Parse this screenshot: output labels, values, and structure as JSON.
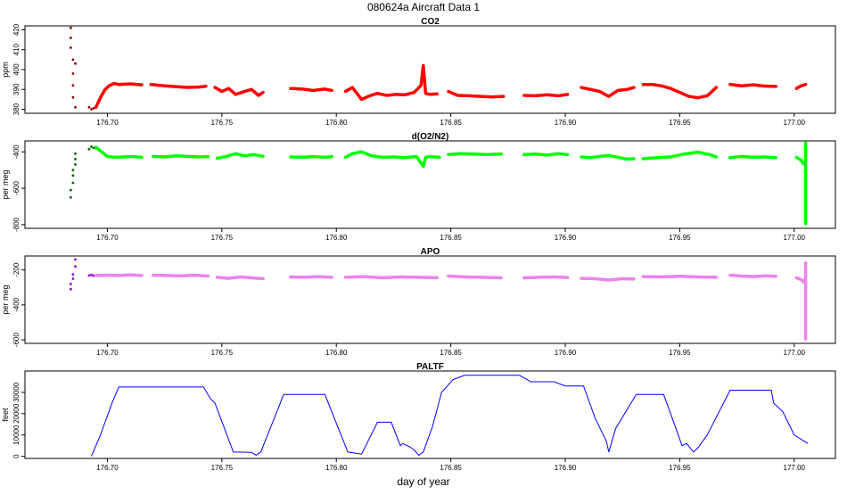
{
  "figure": {
    "title": "080624a   Aircraft Data 1",
    "xlabel": "day of year"
  },
  "colors": {
    "co2": "#ff0000",
    "co2_dark": "#8b0000",
    "o2n2": "#00ff00",
    "o2n2_dark": "#006400",
    "apo": "#ee82ee",
    "apo_dark": "#9400d3",
    "paltf": "#0000ff"
  },
  "chart_data": [
    {
      "type": "scatter",
      "title": "CO2",
      "ylabel": "ppm",
      "xlim": [
        176.664,
        177.018
      ],
      "ylim": [
        378,
        422
      ],
      "yticks": [
        380,
        390,
        400,
        410,
        420
      ],
      "xticks": [
        176.7,
        176.75,
        176.8,
        176.85,
        176.9,
        176.95,
        177.0
      ],
      "xticklabels": [
        "176.70",
        "176.75",
        "176.80",
        "176.85",
        "176.90",
        "176.95",
        "177.00"
      ],
      "series": [
        {
          "color": "co2_dark",
          "x": [
            176.684,
            176.684,
            176.684,
            176.685,
            176.685,
            176.685,
            176.685,
            176.686,
            176.686,
            176.692,
            176.693,
            176.694,
            176.695
          ],
          "y": [
            421,
            416,
            411,
            405,
            398,
            392,
            386,
            381,
            403,
            381,
            380,
            380.5,
            381
          ]
        },
        {
          "color": "co2",
          "x": [
            176.695,
            176.697,
            176.699,
            176.701,
            176.703,
            176.705,
            176.71,
            176.715
          ],
          "y": [
            381,
            386,
            390,
            392,
            393,
            392.5,
            392.8,
            392.3
          ]
        },
        {
          "color": "co2",
          "x": [
            176.719,
            176.725,
            176.73,
            176.735,
            176.74,
            176.743
          ],
          "y": [
            392.5,
            391.8,
            391.4,
            391.0,
            391.2,
            391.6
          ]
        },
        {
          "color": "co2",
          "x": [
            176.747,
            176.75,
            176.753,
            176.756,
            176.76,
            176.763,
            176.766,
            176.768
          ],
          "y": [
            391,
            389,
            390.5,
            387.5,
            389,
            390,
            387,
            388.5
          ]
        },
        {
          "color": "co2",
          "x": [
            176.78,
            176.785,
            176.79,
            176.795,
            176.798
          ],
          "y": [
            390.5,
            390.2,
            389.5,
            390.2,
            389.5
          ]
        },
        {
          "color": "co2",
          "x": [
            176.804,
            176.807,
            176.811,
            176.815,
            176.818,
            176.822,
            176.826,
            176.83,
            176.834,
            176.837,
            176.838,
            176.839,
            176.841,
            176.844
          ],
          "y": [
            389,
            391,
            385,
            387,
            388,
            387,
            387.5,
            387.3,
            388.5,
            392,
            402,
            388,
            387.5,
            387.8
          ]
        },
        {
          "color": "co2",
          "x": [
            176.849,
            176.853,
            176.858,
            176.863,
            176.868,
            176.873
          ],
          "y": [
            389,
            387,
            386.8,
            386.5,
            386.2,
            386.5
          ]
        },
        {
          "color": "co2",
          "x": [
            176.882,
            176.887,
            176.892,
            176.897,
            176.901
          ],
          "y": [
            387,
            386.8,
            387.3,
            386.8,
            387.5
          ]
        },
        {
          "color": "co2",
          "x": [
            176.907,
            176.911,
            176.915,
            176.919,
            176.923,
            176.927,
            176.93
          ],
          "y": [
            391,
            390,
            389,
            386.5,
            389.5,
            390,
            391
          ]
        },
        {
          "color": "co2",
          "x": [
            176.934,
            176.938,
            176.942,
            176.946,
            176.95,
            176.954,
            176.958,
            176.962,
            176.966
          ],
          "y": [
            392.5,
            392.5,
            391.8,
            390.5,
            388.5,
            386.5,
            385.8,
            386.8,
            391
          ]
        },
        {
          "color": "co2",
          "x": [
            176.972,
            176.977,
            176.982,
            176.987,
            176.992
          ],
          "y": [
            392.5,
            391.8,
            392.3,
            391.7,
            391.5
          ]
        },
        {
          "color": "co2",
          "x": [
            177.001,
            177.003,
            177.005
          ],
          "y": [
            390.5,
            391.8,
            392.5
          ]
        }
      ]
    },
    {
      "type": "scatter",
      "title": "d(O2/N2)",
      "ylabel": "per meg",
      "xlim": [
        176.664,
        177.018
      ],
      "ylim": [
        -820,
        -340
      ],
      "yticks": [
        -400,
        -600,
        -800
      ],
      "xticks": [
        176.7,
        176.75,
        176.8,
        176.85,
        176.9,
        176.95,
        177.0
      ],
      "xticklabels": [
        "176.70",
        "176.75",
        "176.80",
        "176.85",
        "176.90",
        "176.95",
        "177.00"
      ],
      "series": [
        {
          "color": "o2n2_dark",
          "x": [
            176.684,
            176.684,
            176.685,
            176.685,
            176.685,
            176.686,
            176.686,
            176.686,
            176.692,
            176.693,
            176.694,
            176.695
          ],
          "y": [
            -650,
            -610,
            -570,
            -530,
            -500,
            -470,
            -440,
            -410,
            -385,
            -372,
            -378,
            -380
          ]
        },
        {
          "color": "o2n2",
          "x": [
            176.695,
            176.698,
            176.7,
            176.703,
            176.707,
            176.711,
            176.715
          ],
          "y": [
            -375,
            -405,
            -425,
            -430,
            -428,
            -426,
            -430
          ]
        },
        {
          "color": "o2n2",
          "x": [
            176.72,
            176.725,
            176.73,
            176.735,
            176.74,
            176.744
          ],
          "y": [
            -425,
            -428,
            -422,
            -425,
            -428,
            -426
          ]
        },
        {
          "color": "o2n2",
          "x": [
            176.748,
            176.752,
            176.756,
            176.76,
            176.764,
            176.768
          ],
          "y": [
            -435,
            -425,
            -410,
            -422,
            -415,
            -425
          ]
        },
        {
          "color": "o2n2",
          "x": [
            176.78,
            176.785,
            176.79,
            176.795,
            176.798
          ],
          "y": [
            -428,
            -430,
            -426,
            -430,
            -426
          ]
        },
        {
          "color": "o2n2",
          "x": [
            176.804,
            176.807,
            176.811,
            176.815,
            176.82,
            176.825,
            176.83,
            176.835,
            176.838,
            176.839,
            176.841,
            176.845
          ],
          "y": [
            -430,
            -410,
            -400,
            -420,
            -430,
            -428,
            -432,
            -425,
            -480,
            -430,
            -426,
            -430
          ]
        },
        {
          "color": "o2n2",
          "x": [
            176.849,
            176.854,
            176.86,
            176.866,
            176.872
          ],
          "y": [
            -415,
            -410,
            -412,
            -415,
            -412
          ]
        },
        {
          "color": "o2n2",
          "x": [
            176.882,
            176.887,
            176.892,
            176.897,
            176.901
          ],
          "y": [
            -415,
            -412,
            -418,
            -410,
            -415
          ]
        },
        {
          "color": "o2n2",
          "x": [
            176.907,
            176.911,
            176.915,
            176.919,
            176.923,
            176.927,
            176.93
          ],
          "y": [
            -428,
            -432,
            -425,
            -420,
            -430,
            -440,
            -438
          ]
        },
        {
          "color": "o2n2",
          "x": [
            176.934,
            176.94,
            176.946,
            176.952,
            176.958,
            176.963,
            176.966
          ],
          "y": [
            -438,
            -432,
            -428,
            -412,
            -402,
            -415,
            -428
          ]
        },
        {
          "color": "o2n2",
          "x": [
            176.972,
            176.977,
            176.982,
            176.987,
            176.992
          ],
          "y": [
            -432,
            -425,
            -430,
            -428,
            -432
          ]
        },
        {
          "color": "o2n2",
          "x": [
            177.001,
            177.003,
            177.004,
            177.005,
            177.005,
            177.005
          ],
          "y": [
            -430,
            -445,
            -465,
            -470,
            -352,
            -795
          ]
        }
      ]
    },
    {
      "type": "scatter",
      "title": "APO",
      "ylabel": "per meg",
      "xlim": [
        176.664,
        177.018
      ],
      "ylim": [
        -620,
        -120
      ],
      "yticks": [
        -200,
        -400,
        -600
      ],
      "xticks": [
        176.7,
        176.75,
        176.8,
        176.85,
        176.9,
        176.95,
        177.0
      ],
      "xticklabels": [
        "176.70",
        "176.75",
        "176.80",
        "176.85",
        "176.90",
        "176.95",
        "177.00"
      ],
      "series": [
        {
          "color": "apo_dark",
          "x": [
            176.684,
            176.684,
            176.685,
            176.685,
            176.686,
            176.686,
            176.692,
            176.693,
            176.694
          ],
          "y": [
            -310,
            -280,
            -250,
            -225,
            -180,
            -140,
            -232,
            -228,
            -232
          ]
        },
        {
          "color": "apo",
          "x": [
            176.695,
            176.7,
            176.705,
            176.71,
            176.715
          ],
          "y": [
            -232,
            -230,
            -232,
            -228,
            -232
          ]
        },
        {
          "color": "apo",
          "x": [
            176.72,
            176.726,
            176.732,
            176.738,
            176.744
          ],
          "y": [
            -230,
            -232,
            -234,
            -230,
            -235
          ]
        },
        {
          "color": "apo",
          "x": [
            176.748,
            176.753,
            176.758,
            176.763,
            176.768
          ],
          "y": [
            -242,
            -248,
            -240,
            -245,
            -250
          ]
        },
        {
          "color": "apo",
          "x": [
            176.78,
            176.786,
            176.792,
            176.798
          ],
          "y": [
            -240,
            -242,
            -238,
            -242
          ]
        },
        {
          "color": "apo",
          "x": [
            176.804,
            176.812,
            176.82,
            176.828,
            176.836,
            176.844
          ],
          "y": [
            -242,
            -238,
            -245,
            -240,
            -242,
            -244
          ]
        },
        {
          "color": "apo",
          "x": [
            176.849,
            176.856,
            176.864,
            176.872
          ],
          "y": [
            -235,
            -240,
            -242,
            -245
          ]
        },
        {
          "color": "apo",
          "x": [
            176.882,
            176.888,
            176.895,
            176.901
          ],
          "y": [
            -245,
            -242,
            -240,
            -243
          ]
        },
        {
          "color": "apo",
          "x": [
            176.907,
            176.913,
            176.919,
            176.925,
            176.93
          ],
          "y": [
            -248,
            -250,
            -258,
            -250,
            -252
          ]
        },
        {
          "color": "apo",
          "x": [
            176.934,
            176.942,
            176.95,
            176.958,
            176.966
          ],
          "y": [
            -238,
            -240,
            -236,
            -240,
            -242
          ]
        },
        {
          "color": "apo",
          "x": [
            176.972,
            176.977,
            176.982,
            176.987,
            176.992
          ],
          "y": [
            -230,
            -235,
            -238,
            -234,
            -236
          ]
        },
        {
          "color": "apo",
          "x": [
            177.001,
            177.003,
            177.004,
            177.005,
            177.005,
            177.005
          ],
          "y": [
            -245,
            -255,
            -268,
            -250,
            -160,
            -595
          ]
        }
      ]
    },
    {
      "type": "line",
      "title": "PALTF",
      "ylabel": "feet",
      "xlim": [
        176.664,
        177.018
      ],
      "ylim": [
        -1000,
        40000
      ],
      "yticks": [
        0,
        10000,
        20000,
        30000
      ],
      "xticks": [
        176.7,
        176.75,
        176.8,
        176.85,
        176.9,
        176.95,
        177.0
      ],
      "xticklabels": [
        "176.70",
        "176.75",
        "176.80",
        "176.85",
        "176.90",
        "176.95",
        "177.00"
      ],
      "series": [
        {
          "color": "paltf",
          "x": [
            176.693,
            176.697,
            176.702,
            176.705,
            176.722,
            176.742,
            176.745,
            176.747,
            176.755,
            176.763,
            176.765,
            176.767,
            176.777,
            176.795,
            176.805,
            176.811,
            176.818,
            176.824,
            176.828,
            176.829,
            176.832,
            176.834,
            176.836,
            176.838,
            176.842,
            176.846,
            176.851,
            176.856,
            176.88,
            176.885,
            176.895,
            176.9,
            176.908,
            176.913,
            176.918,
            176.919,
            176.922,
            176.931,
            176.943,
            176.951,
            176.953,
            176.956,
            176.958,
            176.962,
            176.972,
            176.99,
            176.991,
            176.995,
            177.0,
            177.006
          ],
          "y": [
            0,
            10000,
            25000,
            32500,
            32500,
            32500,
            27000,
            25000,
            2000,
            1800,
            500,
            2000,
            29000,
            29000,
            2000,
            1000,
            16000,
            16000,
            5000,
            6000,
            4500,
            3000,
            500,
            2000,
            14000,
            30000,
            36000,
            38000,
            38000,
            35000,
            35000,
            33000,
            33000,
            18000,
            7000,
            2000,
            13000,
            29000,
            29000,
            5000,
            6000,
            2000,
            4000,
            10000,
            31000,
            31000,
            25000,
            21000,
            10000,
            6000
          ]
        }
      ]
    }
  ]
}
